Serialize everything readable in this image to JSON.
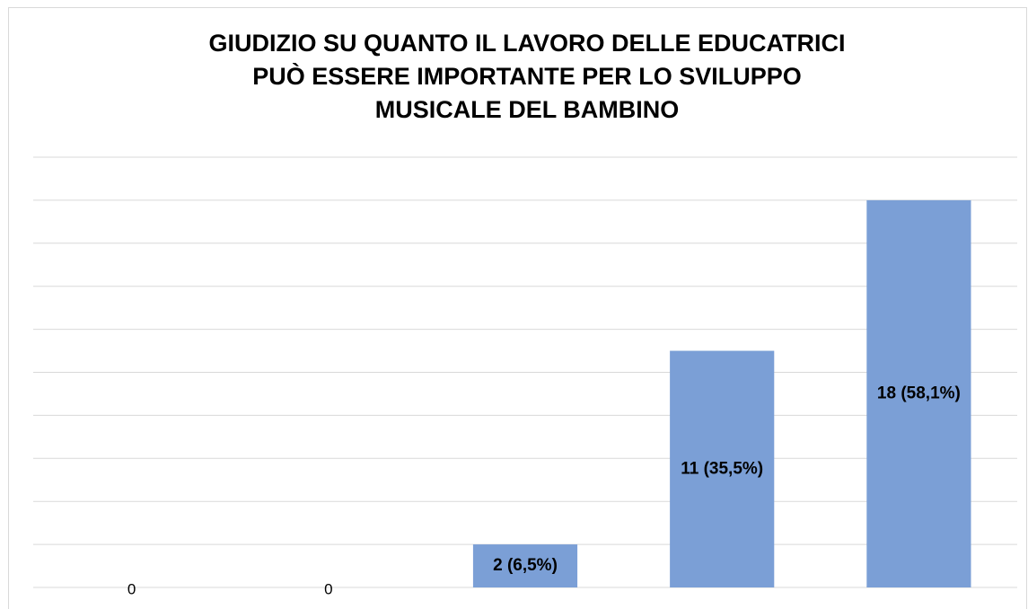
{
  "chart_data": {
    "type": "bar",
    "title": [
      "GIUDIZIO SU QUANTO IL LAVORO DELLE EDUCATRICI",
      "PUÒ ESSERE IMPORTANTE PER LO SVILUPPO",
      "MUSICALE DEL BAMBINO"
    ],
    "categories": [
      null,
      null,
      null,
      null,
      null
    ],
    "values": [
      0,
      0,
      2,
      11,
      18
    ],
    "value_labels": [
      "0",
      "0",
      "2 (6,5%)",
      "11 (35,5%)",
      "18 (58,1%)"
    ],
    "color": "#7b9fd6",
    "ylim": [
      0,
      20
    ],
    "yticks": [
      0,
      2,
      4,
      6,
      8,
      10,
      12,
      14,
      16,
      18,
      20
    ],
    "grid": true
  }
}
